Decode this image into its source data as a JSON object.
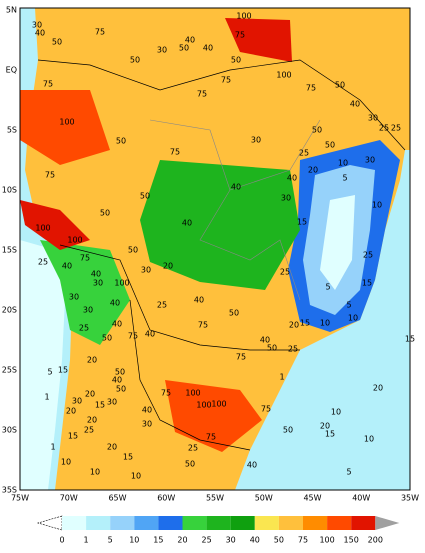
{
  "lat_labels": [
    "5N",
    "EQ",
    "5S",
    "10S",
    "15S",
    "20S",
    "25S",
    "30S",
    "35S"
  ],
  "lon_labels": [
    "75W",
    "70W",
    "65W",
    "60W",
    "55W",
    "50W",
    "45W",
    "40W",
    "35W"
  ],
  "colorbar": {
    "labels": [
      0,
      1,
      5,
      10,
      15,
      20,
      25,
      30,
      40,
      50,
      75,
      100,
      150,
      200
    ],
    "colors": [
      "#e0ffff",
      "#b4f0fa",
      "#96d2fa",
      "#50a5f5",
      "#1e6eeb",
      "#37d23c",
      "#1eb41e",
      "#0fa00f",
      "#fae650",
      "#ffc03c",
      "#ff8c00",
      "#ff4a00",
      "#e11400"
    ],
    "under_color": "#ffffff",
    "over_color": "#a0a0a0"
  },
  "map_labels": [
    30,
    40,
    50,
    75,
    100,
    75,
    30,
    40,
    50,
    40,
    50,
    75,
    50,
    100,
    75,
    75,
    50,
    40,
    30,
    25,
    25,
    100,
    75,
    50,
    75,
    30,
    50,
    50,
    25,
    10,
    30,
    20,
    5,
    10,
    75,
    50,
    40,
    40,
    30,
    50,
    40,
    15,
    100,
    100,
    50,
    75,
    40,
    30,
    20,
    25,
    40,
    30,
    100,
    25,
    25,
    15,
    5,
    30,
    25,
    40,
    50,
    30,
    40,
    5,
    25,
    40,
    75,
    40,
    75,
    50,
    20,
    15,
    10,
    10,
    40,
    50,
    25,
    75,
    15,
    20,
    5,
    15,
    50,
    40,
    100,
    75,
    100,
    100,
    1,
    50,
    30,
    20,
    15,
    30,
    75,
    20,
    1,
    20,
    40,
    20,
    25,
    10,
    30,
    75,
    50,
    20,
    15,
    15,
    10,
    20,
    15,
    25,
    10,
    10,
    10,
    50,
    40,
    5,
    1
  ]
}
